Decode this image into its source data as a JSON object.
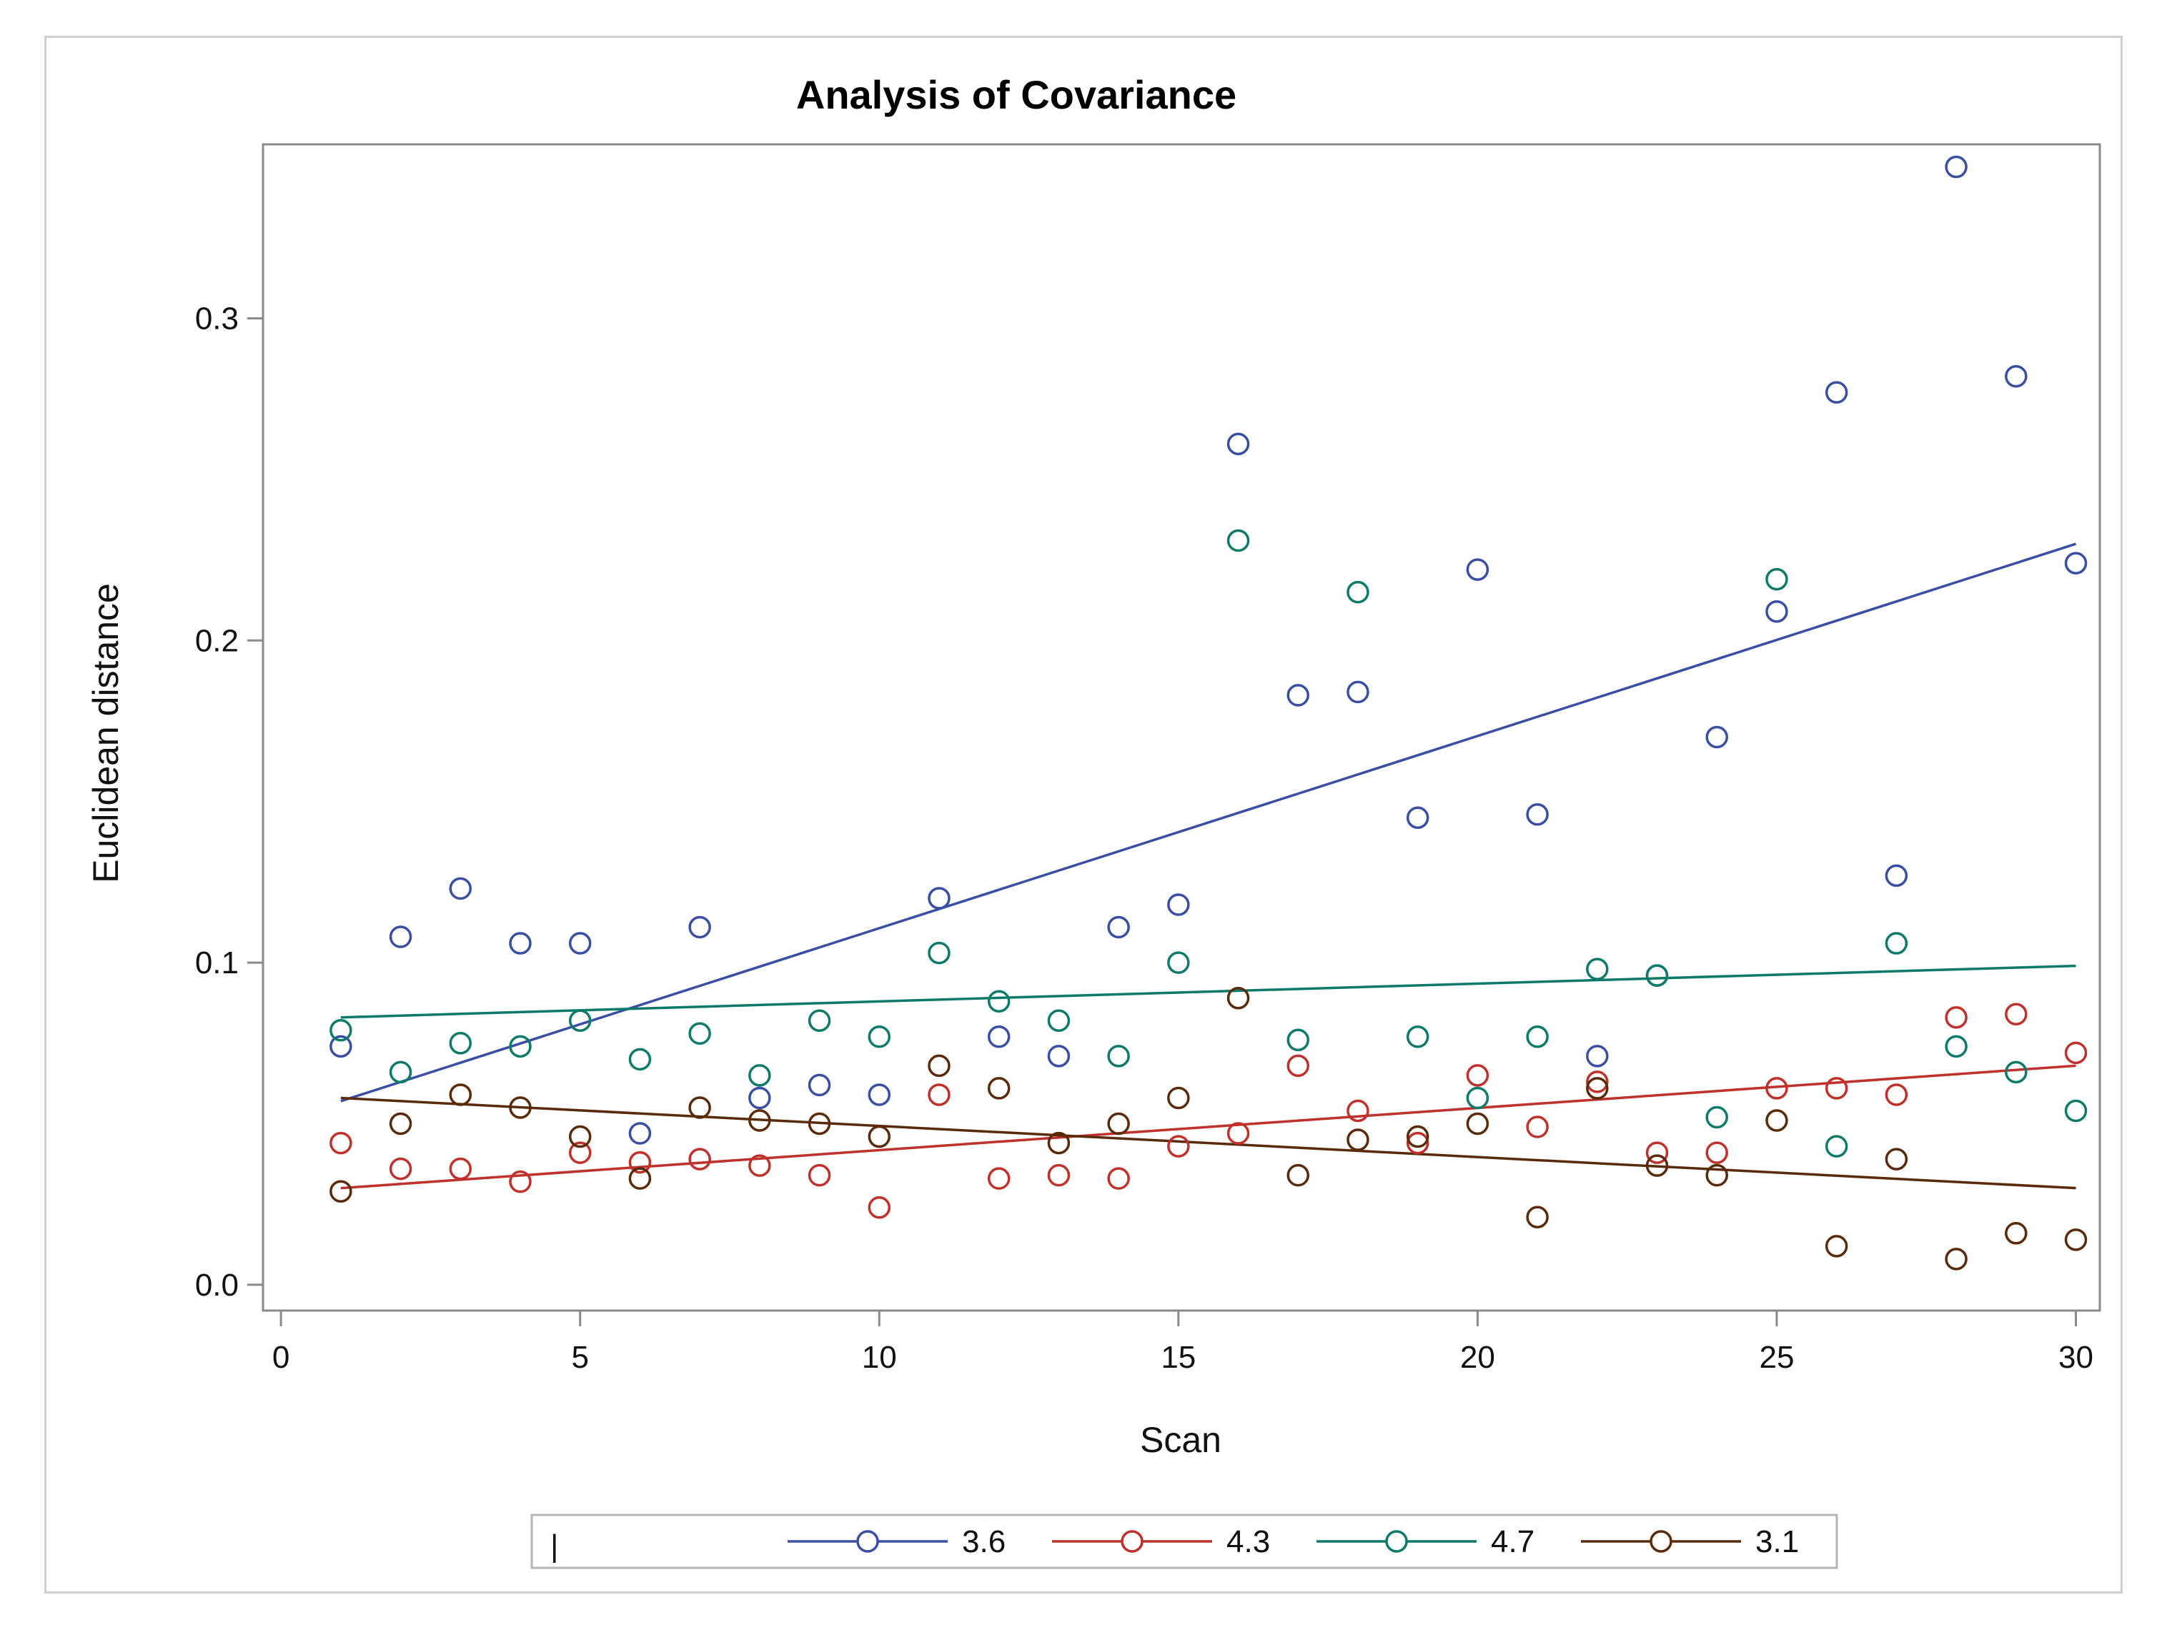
{
  "chart_data": {
    "type": "scatter",
    "title": "Analysis of Covariance",
    "xlabel": "Scan",
    "ylabel": "Euclidean distance",
    "xlim": [
      -0.3,
      30.4
    ],
    "ylim": [
      -0.008,
      0.354
    ],
    "xticks": [
      0,
      5,
      10,
      15,
      20,
      25,
      30
    ],
    "xtick_labels": [
      "0",
      "5",
      "10",
      "15",
      "20",
      "25",
      "30"
    ],
    "yticks": [
      0.0,
      0.1,
      0.2,
      0.3
    ],
    "ytick_labels": [
      "0.0",
      "0.1",
      "0.2",
      "0.3"
    ],
    "grid": false,
    "legend_position": "bottom",
    "legend_prefix": "|",
    "series": [
      {
        "name": "3.6",
        "color": "#3a4ea4",
        "x": [
          1,
          2,
          3,
          4,
          5,
          6,
          7,
          8,
          9,
          10,
          11,
          12,
          13,
          14,
          15,
          16,
          17,
          18,
          19,
          20,
          21,
          22,
          23,
          24,
          25,
          26,
          27,
          28,
          29,
          30
        ],
        "y": [
          0.074,
          0.108,
          0.123,
          0.106,
          0.106,
          0.047,
          0.111,
          0.058,
          0.062,
          0.059,
          0.12,
          0.077,
          0.071,
          0.111,
          0.118,
          0.261,
          0.183,
          0.184,
          0.145,
          0.222,
          0.146,
          0.071,
          0.096,
          0.17,
          0.209,
          0.277,
          0.127,
          0.347,
          0.282,
          0.224
        ],
        "fit": {
          "x": [
            1,
            30
          ],
          "y": [
            0.057,
            0.23
          ]
        }
      },
      {
        "name": "4.3",
        "color": "#c0312b",
        "x": [
          1,
          2,
          3,
          4,
          5,
          6,
          7,
          8,
          9,
          10,
          11,
          12,
          13,
          14,
          15,
          16,
          17,
          18,
          19,
          20,
          21,
          22,
          23,
          24,
          25,
          26,
          27,
          28,
          29,
          30
        ],
        "y": [
          0.044,
          0.036,
          0.036,
          0.032,
          0.041,
          0.038,
          0.039,
          0.037,
          0.034,
          0.024,
          0.059,
          0.033,
          0.034,
          0.033,
          0.043,
          0.047,
          0.068,
          0.054,
          0.044,
          0.065,
          0.049,
          0.063,
          0.041,
          0.041,
          0.061,
          0.061,
          0.059,
          0.083,
          0.084,
          0.072
        ],
        "fit": {
          "x": [
            1,
            30
          ],
          "y": [
            0.03,
            0.068
          ]
        }
      },
      {
        "name": "4.7",
        "color": "#0e7b6a",
        "x": [
          1,
          2,
          3,
          4,
          5,
          6,
          7,
          8,
          9,
          10,
          11,
          12,
          13,
          14,
          15,
          16,
          17,
          18,
          19,
          20,
          21,
          22,
          23,
          24,
          25,
          26,
          27,
          28,
          29,
          30
        ],
        "y": [
          0.079,
          0.066,
          0.075,
          0.074,
          0.082,
          0.07,
          0.078,
          0.065,
          0.082,
          0.077,
          0.103,
          0.088,
          0.082,
          0.071,
          0.1,
          0.231,
          0.076,
          0.215,
          0.077,
          0.058,
          0.077,
          0.098,
          0.096,
          0.052,
          0.219,
          0.043,
          0.106,
          0.074,
          0.066,
          0.054
        ],
        "fit": {
          "x": [
            1,
            30
          ],
          "y": [
            0.083,
            0.099
          ]
        }
      },
      {
        "name": "3.1",
        "color": "#5a2b0b",
        "x": [
          1,
          2,
          3,
          4,
          5,
          6,
          7,
          8,
          9,
          10,
          11,
          12,
          13,
          14,
          15,
          16,
          17,
          18,
          19,
          20,
          21,
          22,
          23,
          24,
          25,
          26,
          27,
          28,
          29,
          30
        ],
        "y": [
          0.029,
          0.05,
          0.059,
          0.055,
          0.046,
          0.033,
          0.055,
          0.051,
          0.05,
          0.046,
          0.068,
          0.061,
          0.044,
          0.05,
          0.058,
          0.089,
          0.034,
          0.045,
          0.046,
          0.05,
          0.021,
          0.061,
          0.037,
          0.034,
          0.051,
          0.012,
          0.039,
          0.008,
          0.016,
          0.014
        ],
        "fit": {
          "x": [
            1,
            30
          ],
          "y": [
            0.058,
            0.03
          ]
        }
      }
    ]
  }
}
